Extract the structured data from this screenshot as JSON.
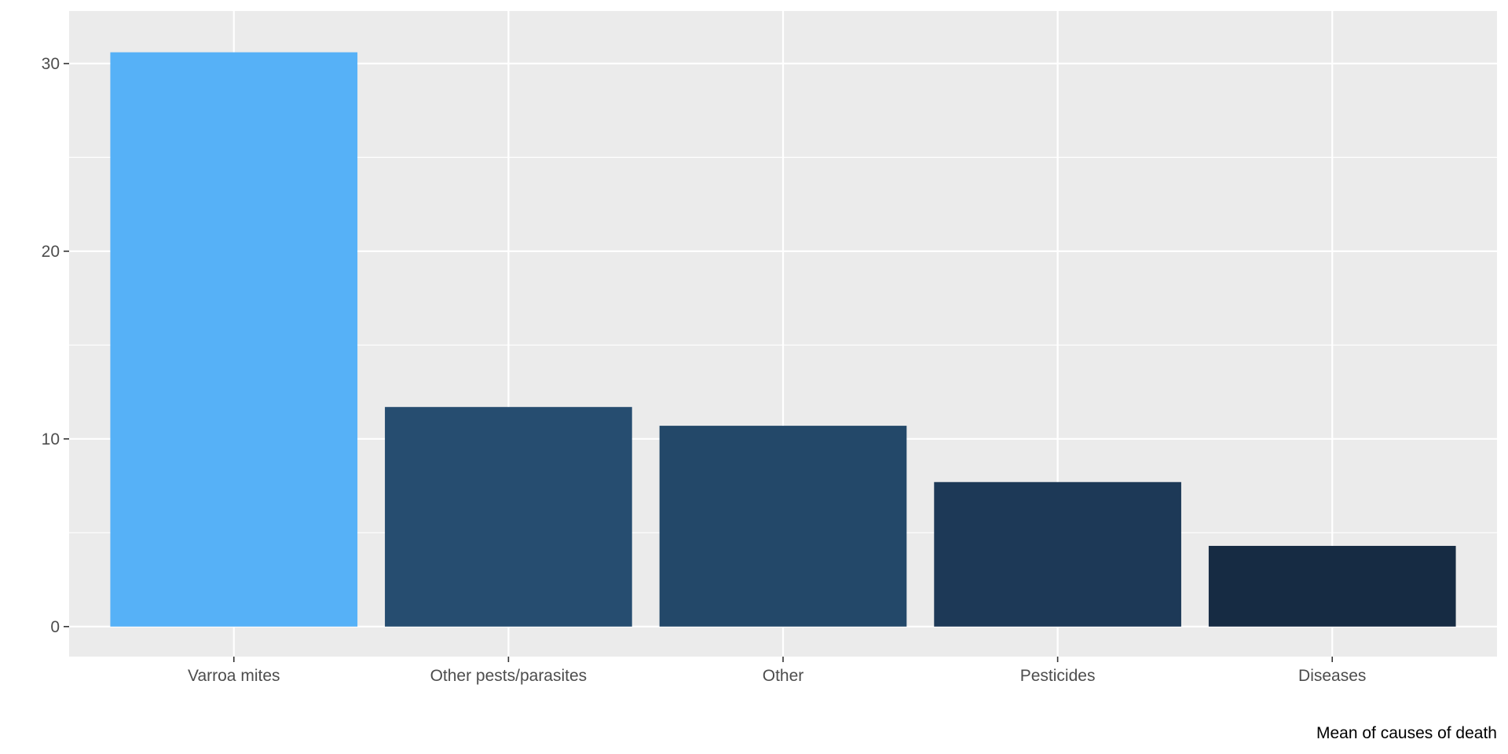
{
  "chart_data": {
    "type": "bar",
    "categories": [
      "Varroa mites",
      "Other pests/parasites",
      "Other",
      "Pesticides",
      "Diseases"
    ],
    "values": [
      30.6,
      11.7,
      10.7,
      7.7,
      4.3
    ],
    "colors": [
      "#56B1F7",
      "#264D70",
      "#234869",
      "#1D3957",
      "#162B43"
    ],
    "title": "",
    "xlabel": "",
    "ylabel": "",
    "caption": "Mean of causes of death",
    "ylim": [
      -1.6,
      32.8
    ],
    "yticks": [
      0,
      10,
      20,
      30
    ],
    "ytick_labels": [
      "0",
      "10",
      "20",
      "30"
    ],
    "grid": true,
    "legend": "none",
    "panel_background": "#EBEBEB",
    "grid_color": "#FFFFFF"
  }
}
